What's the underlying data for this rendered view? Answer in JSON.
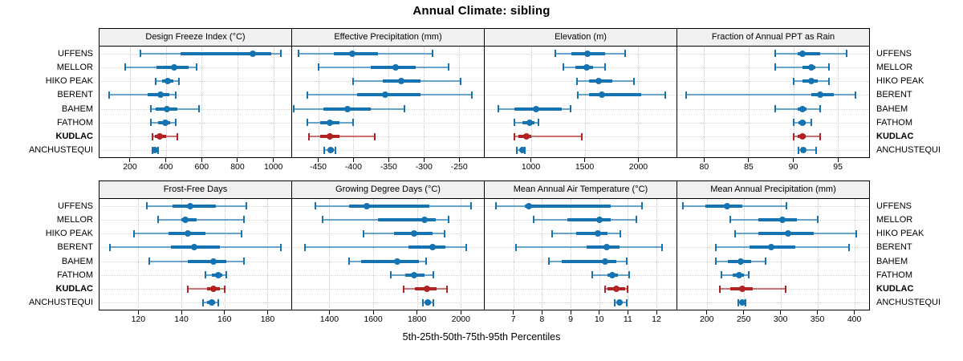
{
  "title": "Annual Climate: sibling",
  "xlabel": "5th-25th-50th-75th-95th Percentiles",
  "sites": [
    "UFFENS",
    "MELLOR",
    "HIKO PEAK",
    "BERENT",
    "BAHEM",
    "FATHOM",
    "KUDLAC",
    "ANCHUSTEQUI"
  ],
  "highlight_site": "KUDLAC",
  "colors": {
    "series": "#1673b1",
    "highlight": "#b22222",
    "header_bg": "#f0f0f0",
    "grid": "#c8c8c8",
    "border": "#000000"
  },
  "chart_data": [
    {
      "type": "scatter",
      "subtype": "percentile-dot-whisker",
      "title": "Design Freeze Index (°C)",
      "xlim": [
        30,
        1100
      ],
      "ticks": [
        200,
        400,
        600,
        800,
        1000
      ],
      "percentile_labels": [
        "p5",
        "p25",
        "p50",
        "p75",
        "p95"
      ],
      "series": [
        {
          "site": "UFFENS",
          "percentiles": [
            260,
            480,
            885,
            990,
            1040
          ]
        },
        {
          "site": "MELLOR",
          "percentiles": [
            175,
            350,
            445,
            525,
            570
          ]
        },
        {
          "site": "HIKO PEAK",
          "percentiles": [
            345,
            380,
            410,
            440,
            475
          ]
        },
        {
          "site": "BERENT",
          "percentiles": [
            85,
            300,
            370,
            420,
            455
          ]
        },
        {
          "site": "BAHEM",
          "percentiles": [
            315,
            345,
            405,
            465,
            585
          ]
        },
        {
          "site": "FATHOM",
          "percentiles": [
            315,
            355,
            395,
            425,
            455
          ]
        },
        {
          "site": "KUDLAC",
          "percentiles": [
            325,
            340,
            365,
            400,
            465
          ]
        },
        {
          "site": "ANCHUSTEQUI",
          "percentiles": [
            327,
            334,
            341,
            348,
            355
          ]
        }
      ]
    },
    {
      "type": "scatter",
      "subtype": "percentile-dot-whisker",
      "title": "Effective Precipitation (mm)",
      "xlim": [
        -487,
        -215
      ],
      "ticks": [
        -450,
        -400,
        -350,
        -300,
        -250
      ],
      "series": [
        {
          "site": "UFFENS",
          "percentiles": [
            -478,
            -428,
            -402,
            -365,
            -288
          ]
        },
        {
          "site": "MELLOR",
          "percentiles": [
            -450,
            -375,
            -340,
            -312,
            -265
          ]
        },
        {
          "site": "HIKO PEAK",
          "percentiles": [
            -400,
            -358,
            -332,
            -305,
            -248
          ]
        },
        {
          "site": "BERENT",
          "percentiles": [
            -465,
            -395,
            -355,
            -305,
            -232
          ]
        },
        {
          "site": "BAHEM",
          "percentiles": [
            -485,
            -443,
            -408,
            -375,
            -328
          ]
        },
        {
          "site": "FATHOM",
          "percentiles": [
            -465,
            -447,
            -433,
            -420,
            -400
          ]
        },
        {
          "site": "KUDLAC",
          "percentiles": [
            -463,
            -447,
            -434,
            -420,
            -370
          ]
        },
        {
          "site": "ANCHUSTEQUI",
          "percentiles": [
            -441,
            -436,
            -432,
            -428,
            -425
          ]
        }
      ]
    },
    {
      "type": "scatter",
      "subtype": "percentile-dot-whisker",
      "title": "Elevation (m)",
      "xlim": [
        570,
        2355
      ],
      "ticks": [
        1000,
        1500,
        2000
      ],
      "series": [
        {
          "site": "UFFENS",
          "percentiles": [
            1230,
            1380,
            1525,
            1690,
            1875
          ]
        },
        {
          "site": "MELLOR",
          "percentiles": [
            1305,
            1415,
            1515,
            1580,
            1690
          ]
        },
        {
          "site": "HIKO PEAK",
          "percentiles": [
            1430,
            1540,
            1630,
            1760,
            1960
          ]
        },
        {
          "site": "BERENT",
          "percentiles": [
            1440,
            1540,
            1660,
            2030,
            2250
          ]
        },
        {
          "site": "BAHEM",
          "percentiles": [
            700,
            850,
            1050,
            1290,
            1370
          ]
        },
        {
          "site": "FATHOM",
          "percentiles": [
            850,
            920,
            990,
            1030,
            1070
          ]
        },
        {
          "site": "KUDLAC",
          "percentiles": [
            850,
            880,
            960,
            1000,
            1470
          ]
        },
        {
          "site": "ANCHUSTEQUI",
          "percentiles": [
            870,
            895,
            920,
            935,
            945
          ]
        }
      ]
    },
    {
      "type": "scatter",
      "subtype": "percentile-dot-whisker",
      "title": "Fraction of Annual PPT as Rain",
      "xlim": [
        77,
        98.5
      ],
      "ticks": [
        80,
        85,
        90,
        95
      ],
      "series": [
        {
          "site": "UFFENS",
          "percentiles": [
            88,
            90.5,
            91,
            93,
            96
          ]
        },
        {
          "site": "MELLOR",
          "percentiles": [
            88,
            91,
            92,
            92.5,
            94
          ]
        },
        {
          "site": "HIKO PEAK",
          "percentiles": [
            90,
            91,
            92,
            92.7,
            94
          ]
        },
        {
          "site": "BERENT",
          "percentiles": [
            78,
            92,
            93,
            94.5,
            97
          ]
        },
        {
          "site": "BAHEM",
          "percentiles": [
            88,
            90.5,
            91,
            91.5,
            93
          ]
        },
        {
          "site": "FATHOM",
          "percentiles": [
            90,
            90.6,
            91,
            91.4,
            92
          ]
        },
        {
          "site": "KUDLAC",
          "percentiles": [
            90,
            90.5,
            91,
            91.4,
            93
          ]
        },
        {
          "site": "ANCHUSTEQUI",
          "percentiles": [
            90.6,
            90.9,
            91.1,
            91.4,
            92.6
          ]
        }
      ]
    },
    {
      "type": "scatter",
      "subtype": "percentile-dot-whisker",
      "title": "Frost-Free Days",
      "xlim": [
        102,
        191
      ],
      "ticks": [
        120,
        140,
        160,
        180
      ],
      "series": [
        {
          "site": "UFFENS",
          "percentiles": [
            124,
            136,
            144,
            156,
            170
          ]
        },
        {
          "site": "MELLOR",
          "percentiles": [
            129,
            140,
            142,
            147,
            169
          ]
        },
        {
          "site": "HIKO PEAK",
          "percentiles": [
            118,
            134,
            143,
            151,
            168
          ]
        },
        {
          "site": "BERENT",
          "percentiles": [
            107,
            135,
            146,
            158,
            186
          ]
        },
        {
          "site": "BAHEM",
          "percentiles": [
            125,
            143,
            155,
            161,
            169
          ]
        },
        {
          "site": "FATHOM",
          "percentiles": [
            151,
            154,
            157,
            159,
            161
          ]
        },
        {
          "site": "KUDLAC",
          "percentiles": [
            143,
            152,
            155,
            158,
            160
          ]
        },
        {
          "site": "ANCHUSTEQUI",
          "percentiles": [
            150,
            152,
            154,
            155.5,
            157
          ]
        }
      ]
    },
    {
      "type": "scatter",
      "subtype": "percentile-dot-whisker",
      "title": "Growing Degree Days (°C)",
      "xlim": [
        1230,
        2105
      ],
      "ticks": [
        1400,
        1600,
        1800,
        2000
      ],
      "series": [
        {
          "site": "UFFENS",
          "percentiles": [
            1335,
            1490,
            1570,
            1855,
            2045
          ]
        },
        {
          "site": "MELLOR",
          "percentiles": [
            1370,
            1620,
            1835,
            1885,
            1945
          ]
        },
        {
          "site": "HIKO PEAK",
          "percentiles": [
            1555,
            1695,
            1785,
            1870,
            1925
          ]
        },
        {
          "site": "BERENT",
          "percentiles": [
            1290,
            1760,
            1870,
            1930,
            2025
          ]
        },
        {
          "site": "BAHEM",
          "percentiles": [
            1490,
            1545,
            1710,
            1810,
            1840
          ]
        },
        {
          "site": "FATHOM",
          "percentiles": [
            1680,
            1745,
            1785,
            1835,
            1875
          ]
        },
        {
          "site": "KUDLAC",
          "percentiles": [
            1740,
            1790,
            1845,
            1890,
            1935
          ]
        },
        {
          "site": "ANCHUSTEQUI",
          "percentiles": [
            1825,
            1840,
            1850,
            1862,
            1875
          ]
        }
      ]
    },
    {
      "type": "scatter",
      "subtype": "percentile-dot-whisker",
      "title": "Mean Annual Air Temperature (°C)",
      "xlim": [
        6.0,
        12.7
      ],
      "ticks": [
        7,
        8,
        9,
        10,
        11,
        12
      ],
      "series": [
        {
          "site": "UFFENS",
          "percentiles": [
            6.4,
            7.4,
            7.55,
            10.4,
            11.5
          ]
        },
        {
          "site": "MELLOR",
          "percentiles": [
            7.7,
            8.9,
            10.0,
            10.4,
            11.3
          ]
        },
        {
          "site": "HIKO PEAK",
          "percentiles": [
            8.35,
            9.2,
            9.95,
            10.3,
            10.75
          ]
        },
        {
          "site": "BERENT",
          "percentiles": [
            7.1,
            9.55,
            10.25,
            10.7,
            12.2
          ]
        },
        {
          "site": "BAHEM",
          "percentiles": [
            8.25,
            8.7,
            10.2,
            10.6,
            10.95
          ]
        },
        {
          "site": "FATHOM",
          "percentiles": [
            9.75,
            10.3,
            10.45,
            10.65,
            11.05
          ]
        },
        {
          "site": "KUDLAC",
          "percentiles": [
            10.2,
            10.3,
            10.6,
            10.9,
            11.0
          ]
        },
        {
          "site": "ANCHUSTEQUI",
          "percentiles": [
            10.55,
            10.65,
            10.7,
            10.8,
            10.95
          ]
        }
      ]
    },
    {
      "type": "scatter",
      "subtype": "percentile-dot-whisker",
      "title": "Mean Annual Precipitation (mm)",
      "xlim": [
        160,
        420
      ],
      "ticks": [
        200,
        250,
        300,
        350,
        400
      ],
      "series": [
        {
          "site": "UFFENS",
          "percentiles": [
            168,
            198,
            227,
            248,
            308
          ]
        },
        {
          "site": "MELLOR",
          "percentiles": [
            232,
            270,
            303,
            322,
            350
          ]
        },
        {
          "site": "HIKO PEAK",
          "percentiles": [
            238,
            270,
            310,
            345,
            403
          ]
        },
        {
          "site": "BERENT",
          "percentiles": [
            212,
            258,
            287,
            320,
            393
          ]
        },
        {
          "site": "BAHEM",
          "percentiles": [
            212,
            228,
            246,
            260,
            280
          ]
        },
        {
          "site": "FATHOM",
          "percentiles": [
            220,
            235,
            244,
            250,
            257
          ]
        },
        {
          "site": "KUDLAC",
          "percentiles": [
            218,
            232,
            248,
            262,
            307
          ]
        },
        {
          "site": "ANCHUSTEQUI",
          "percentiles": [
            243,
            246,
            248,
            250,
            253
          ]
        }
      ]
    }
  ]
}
